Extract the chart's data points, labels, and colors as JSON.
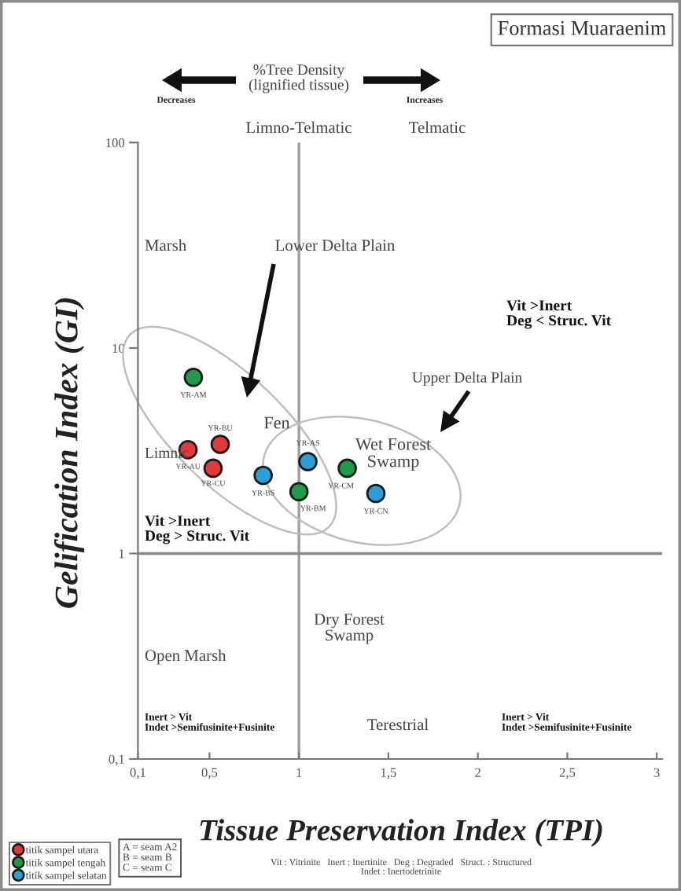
{
  "chart_data": {
    "type": "scatter",
    "title": "Formasi Muaraenim",
    "xlabel": "Tissue Preservation Index (TPI)",
    "ylabel": "Gelification Index (GI)",
    "xlim": [
      0.1,
      3.03
    ],
    "ylim": [
      0.1,
      100
    ],
    "log": "y",
    "xticks": [
      {
        "value": 0.1,
        "label": "0,1"
      },
      {
        "value": 0.5,
        "label": "0,5"
      },
      1,
      {
        "value": 1.5,
        "label": "1,5"
      },
      2,
      {
        "value": 2.5,
        "label": "2,5"
      },
      3
    ],
    "yticks": [
      {
        "value": 0.1,
        "label": "0,1"
      },
      1,
      10,
      100
    ],
    "marker": "circle",
    "legend": "bottom left",
    "ref_lines": [
      {
        "axis": "x",
        "value": 1,
        "color": "#9c9c9c"
      },
      {
        "axis": "y",
        "value": 1,
        "color": "#8a8a8a"
      }
    ],
    "series": [
      {
        "name": "titik sampel utara",
        "color": "#e5383b",
        "x": [
          0.38,
          0.56,
          0.52
        ],
        "values": [
          3.2,
          3.4,
          2.6
        ]
      },
      {
        "name": "titik sampel tengah",
        "color": "#1f9a48",
        "x": [
          0.41,
          1.0,
          1.27
        ],
        "values": [
          7.2,
          2.0,
          2.6
        ]
      },
      {
        "name": "titik sampel selatan",
        "color": "#2a9fd8",
        "x": [
          1.05,
          0.8,
          1.43
        ],
        "values": [
          2.8,
          2.4,
          1.96
        ]
      }
    ],
    "annotations": [
      "%Tree Density\n(lignified tissue)",
      "Decreases",
      "Increases",
      "Limno-Telmatic",
      "Telmatic",
      "Marsh",
      "Lower Delta Plain",
      "Upper Delta Plain",
      "Vit >Inert\nDeg < Struc. Vit",
      "Fen",
      "Limnic",
      "Wet Forest\nSwamp",
      "Vit >Inert\nDeg > Struc. Vit",
      "Dry Forest\nSwamp",
      "Open Marsh",
      "Inert > Vit\nIndet >Semifusinite+Fusinite",
      "Terestrial",
      "Inert > Vit\nIndet >Semifusinite+Fusinite",
      "A = seam A2\nB = seam B\nC = seam C",
      "Vit : Vitrinite   Inert : Inertinite   Deg : Degraded   Struct. : Structured\nIndet : Inertodetrinite",
      {
        "text": "YR-AU",
        "x": 0.38,
        "y": 3.2
      },
      {
        "text": "YR-BU",
        "x": 0.56,
        "y": 3.4
      },
      {
        "text": "YR-CU",
        "x": 0.52,
        "y": 2.6
      },
      {
        "text": "YR-AM",
        "x": 0.41,
        "y": 7.2
      },
      {
        "text": "YR-BM",
        "x": 1.0,
        "y": 2.0
      },
      {
        "text": "YR-CM",
        "x": 1.27,
        "y": 2.6
      },
      {
        "text": "YR-AS",
        "x": 1.05,
        "y": 2.8
      },
      {
        "text": "YR-BS",
        "x": 0.8,
        "y": 2.4
      },
      {
        "text": "YR-CN",
        "x": 1.43,
        "y": 1.96
      }
    ]
  }
}
